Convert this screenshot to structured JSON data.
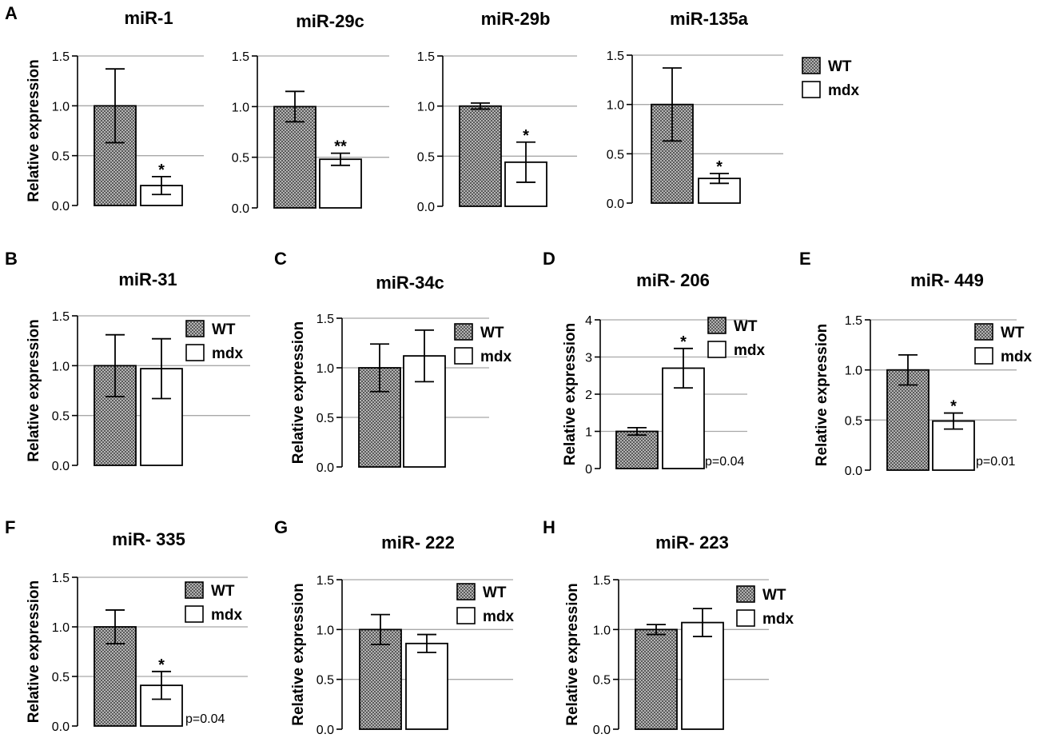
{
  "colors": {
    "wt_fill": "#8c8c8c",
    "mdx_fill": "#ffffff",
    "grid": "#a8a8a8",
    "axis": "#000000"
  },
  "chart_data": [
    {
      "panel": "A",
      "type": "bar",
      "title": "miR-1",
      "ylabel": "Relative expression",
      "categories": [
        "WT",
        "mdx"
      ],
      "values": [
        1.0,
        0.2
      ],
      "errors": [
        0.37,
        0.09
      ],
      "ylim": [
        0,
        1.5
      ],
      "yticks": [
        "0.0",
        "0.5",
        "1.0",
        "1.5"
      ],
      "tick_values": [
        0,
        0.5,
        1.0,
        1.5
      ],
      "significance": "*",
      "pvalue": "",
      "legend": null
    },
    {
      "panel": "",
      "type": "bar",
      "title": "miR-29c",
      "ylabel": "",
      "categories": [
        "WT",
        "mdx"
      ],
      "values": [
        1.0,
        0.48
      ],
      "errors": [
        0.15,
        0.06
      ],
      "ylim": [
        0,
        1.5
      ],
      "yticks": [
        "0.0",
        "0.5",
        "1.0",
        "1.5"
      ],
      "tick_values": [
        0,
        0.5,
        1.0,
        1.5
      ],
      "significance": "**",
      "pvalue": "",
      "legend": null
    },
    {
      "panel": "",
      "type": "bar",
      "title": "miR-29b",
      "ylabel": "",
      "categories": [
        "WT",
        "mdx"
      ],
      "values": [
        1.0,
        0.44
      ],
      "errors": [
        0.03,
        0.2
      ],
      "ylim": [
        0,
        1.5
      ],
      "yticks": [
        "0.0",
        "0.5",
        "1.0",
        "1.5"
      ],
      "tick_values": [
        0,
        0.5,
        1.0,
        1.5
      ],
      "significance": "*",
      "pvalue": "",
      "legend": null
    },
    {
      "panel": "",
      "type": "bar",
      "title": "miR-135a",
      "ylabel": "",
      "categories": [
        "WT",
        "mdx"
      ],
      "values": [
        1.0,
        0.25
      ],
      "errors": [
        0.37,
        0.05
      ],
      "ylim": [
        0,
        1.5
      ],
      "yticks": [
        "0.0",
        "0.5",
        "1.0",
        "1.5"
      ],
      "tick_values": [
        0,
        0.5,
        1.0,
        1.5
      ],
      "significance": "*",
      "pvalue": "",
      "legend": [
        "WT",
        "mdx"
      ]
    },
    {
      "panel": "B",
      "type": "bar",
      "title": "miR-31",
      "ylabel": "Relative expression",
      "categories": [
        "WT",
        "mdx"
      ],
      "values": [
        1.0,
        0.97
      ],
      "errors": [
        0.31,
        0.3
      ],
      "ylim": [
        0,
        1.5
      ],
      "yticks": [
        "0.0",
        "0.5",
        "1.0",
        "1.5"
      ],
      "tick_values": [
        0,
        0.5,
        1.0,
        1.5
      ],
      "significance": "",
      "pvalue": "",
      "legend": [
        "WT",
        "mdx"
      ]
    },
    {
      "panel": "C",
      "type": "bar",
      "title": "miR-34c",
      "ylabel": "Relative expression",
      "categories": [
        "WT",
        "mdx"
      ],
      "values": [
        1.0,
        1.12
      ],
      "errors": [
        0.24,
        0.26
      ],
      "ylim": [
        0,
        1.5
      ],
      "yticks": [
        "0.0",
        "0.5",
        "1.0",
        "1.5"
      ],
      "tick_values": [
        0,
        0.5,
        1.0,
        1.5
      ],
      "significance": "",
      "pvalue": "",
      "legend": [
        "WT",
        "mdx"
      ]
    },
    {
      "panel": "D",
      "type": "bar",
      "title": "miR- 206",
      "ylabel": "Relative expression",
      "categories": [
        "WT",
        "mdx"
      ],
      "values": [
        1.0,
        2.7
      ],
      "errors": [
        0.1,
        0.53
      ],
      "ylim": [
        0,
        4
      ],
      "yticks": [
        "0",
        "1",
        "2",
        "3",
        "4"
      ],
      "tick_values": [
        0,
        1,
        2,
        3,
        4
      ],
      "significance": "*",
      "pvalue": "p=0.04",
      "legend": [
        "WT",
        "mdx"
      ]
    },
    {
      "panel": "E",
      "type": "bar",
      "title": "miR- 449",
      "ylabel": "Relative expression",
      "categories": [
        "WT",
        "mdx"
      ],
      "values": [
        1.0,
        0.49
      ],
      "errors": [
        0.15,
        0.08
      ],
      "ylim": [
        0,
        1.5
      ],
      "yticks": [
        "0.0",
        "0.5",
        "1.0",
        "1.5"
      ],
      "tick_values": [
        0,
        0.5,
        1.0,
        1.5
      ],
      "significance": "*",
      "pvalue": "p=0.01",
      "legend": [
        "WT",
        "mdx"
      ]
    },
    {
      "panel": "F",
      "type": "bar",
      "title": "miR- 335",
      "ylabel": "Relative expression",
      "categories": [
        "WT",
        "mdx"
      ],
      "values": [
        1.0,
        0.41
      ],
      "errors": [
        0.17,
        0.14
      ],
      "ylim": [
        0,
        1.5
      ],
      "yticks": [
        "0.0",
        "0.5",
        "1.0",
        "1.5"
      ],
      "tick_values": [
        0,
        0.5,
        1.0,
        1.5
      ],
      "significance": "*",
      "pvalue": "p=0.04",
      "legend": [
        "WT",
        "mdx"
      ]
    },
    {
      "panel": "G",
      "type": "bar",
      "title": "miR- 222",
      "ylabel": "Relative expression",
      "categories": [
        "WT",
        "mdx"
      ],
      "values": [
        1.0,
        0.86
      ],
      "errors": [
        0.15,
        0.09
      ],
      "ylim": [
        0,
        1.5
      ],
      "yticks": [
        "0.0",
        "0.5",
        "1.0",
        "1.5"
      ],
      "tick_values": [
        0,
        0.5,
        1.0,
        1.5
      ],
      "significance": "",
      "pvalue": "",
      "legend": [
        "WT",
        "mdx"
      ]
    },
    {
      "panel": "H",
      "type": "bar",
      "title": "miR- 223",
      "ylabel": "Relative expression",
      "categories": [
        "WT",
        "mdx"
      ],
      "values": [
        1.0,
        1.07
      ],
      "errors": [
        0.05,
        0.14
      ],
      "ylim": [
        0,
        1.5
      ],
      "yticks": [
        "0.0",
        "0.5",
        "1.0",
        "1.5"
      ],
      "tick_values": [
        0,
        0.5,
        1.0,
        1.5
      ],
      "significance": "",
      "pvalue": "",
      "legend": [
        "WT",
        "mdx"
      ]
    }
  ]
}
